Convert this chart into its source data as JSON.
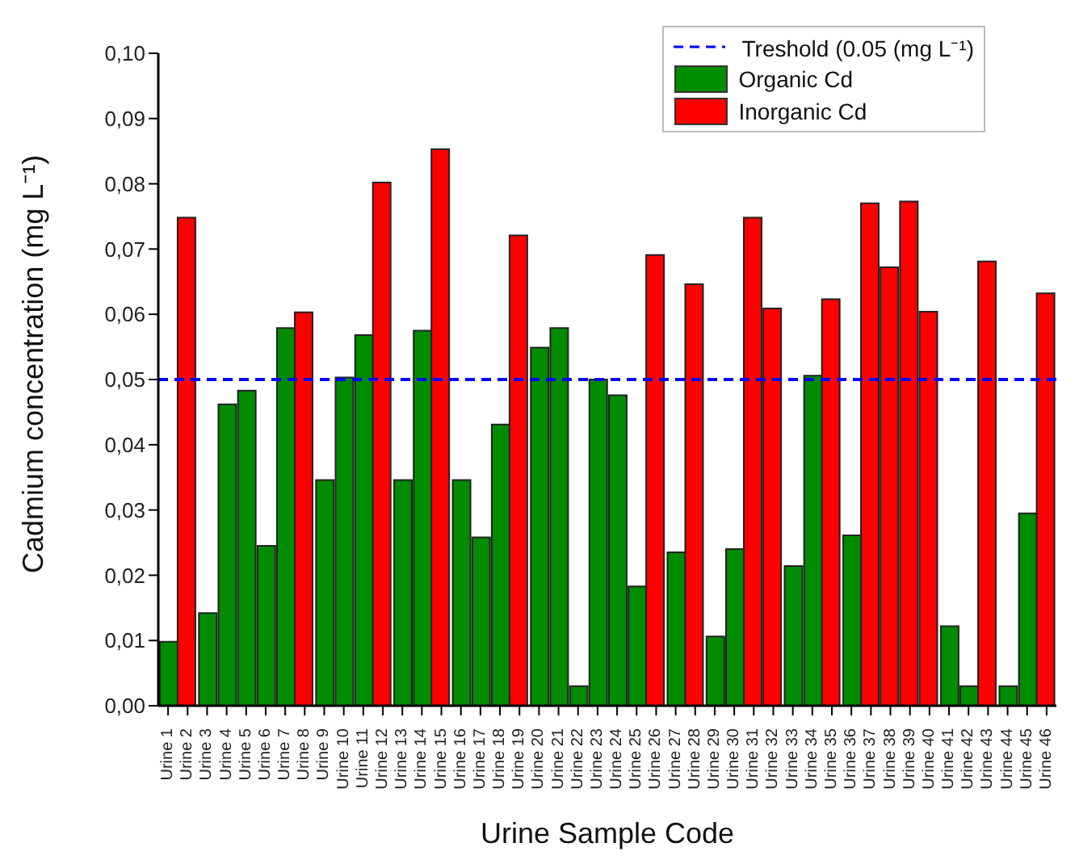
{
  "chart_data": {
    "type": "bar",
    "xlabel": "Urine Sample Code",
    "ylabel": "Cadmium concentration  (mg L⁻¹)",
    "categories": [
      "Urine 1",
      "Urine 2",
      "Urine 3",
      "Urine 4",
      "Urine 5",
      "Urine 6",
      "Urine 7",
      "Urine 8",
      "Urine 9",
      "Urine 10",
      "Urine 11",
      "Urine 12",
      "Urine 13",
      "Urine 14",
      "Urine 15",
      "Urine 16",
      "Urine 17",
      "Urine 18",
      "Urine 19",
      "Urine 20",
      "Urine 21",
      "Urine 22",
      "Urine 23",
      "Urine 24",
      "Urine 25",
      "Urine 26",
      "Urine 27",
      "Urine 28",
      "Urine 29",
      "Urine 30",
      "Urine 31",
      "Urine 32",
      "Urine 33",
      "Urine 34",
      "Urine 35",
      "Urine 36",
      "Urine 37",
      "Urine 38",
      "Urine 39",
      "Urine 40",
      "Urine 41",
      "Urine 42",
      "Urine 43",
      "Urine 44",
      "Urine 45",
      "Urine 46"
    ],
    "series": [
      {
        "name": "Organic Cd",
        "color": "#008c00",
        "values": [
          0.0098,
          null,
          0.0142,
          0.0462,
          0.0483,
          0.0245,
          0.0579,
          null,
          0.0346,
          0.0503,
          0.0568,
          null,
          0.0346,
          0.0575,
          null,
          0.0346,
          0.0258,
          0.0431,
          null,
          0.0549,
          0.0579,
          0.003,
          0.05,
          0.0476,
          0.0183,
          null,
          0.0235,
          null,
          0.0106,
          0.024,
          null,
          null,
          0.0214,
          0.0506,
          null,
          0.0261,
          null,
          null,
          null,
          null,
          0.0122,
          0.003,
          null,
          0.003,
          0.0295,
          null
        ]
      },
      {
        "name": "Inorganic Cd",
        "color": "#ff0000",
        "values": [
          null,
          0.0748,
          null,
          null,
          null,
          null,
          null,
          0.0603,
          null,
          null,
          null,
          0.0802,
          null,
          null,
          0.0853,
          null,
          null,
          null,
          0.0721,
          null,
          null,
          null,
          null,
          null,
          null,
          0.0691,
          null,
          0.0646,
          null,
          null,
          0.0748,
          0.0609,
          null,
          null,
          0.0623,
          null,
          0.077,
          0.0672,
          0.0773,
          0.0604,
          null,
          null,
          0.0681,
          null,
          null,
          0.0632
        ]
      }
    ],
    "ylim": [
      0,
      0.1
    ],
    "yticks": [
      {
        "value": 0,
        "label": "0,00"
      },
      {
        "value": 0.01,
        "label": "0,01"
      },
      {
        "value": 0.02,
        "label": "0,02"
      },
      {
        "value": 0.03,
        "label": "0,03"
      },
      {
        "value": 0.04,
        "label": "0,04"
      },
      {
        "value": 0.05,
        "label": "0,05"
      },
      {
        "value": 0.06,
        "label": "0,06"
      },
      {
        "value": 0.07,
        "label": "0,07"
      },
      {
        "value": 0.08,
        "label": "0,08"
      },
      {
        "value": 0.09,
        "label": "0,09"
      },
      {
        "value": 0.1,
        "label": "0,10"
      }
    ],
    "ref_lines": [
      {
        "axis": "y",
        "value": 0.05,
        "label": "Treshold (0.05  (mg L⁻¹)",
        "color": "#0000ff",
        "line_style": "dashed"
      }
    ],
    "legend": "top right",
    "grid": false
  }
}
